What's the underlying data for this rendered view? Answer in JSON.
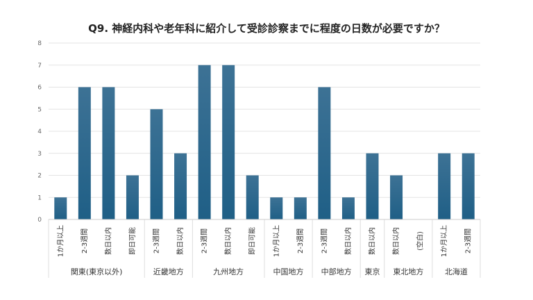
{
  "chart_data": {
    "type": "bar",
    "title": "Q9. 神経内科や老年科に紹介して受診診察までに程度の日数が必要ですか？",
    "xlabel": "",
    "ylabel": "",
    "ylim": [
      0,
      8
    ],
    "yticks": [
      "0",
      "1",
      "2",
      "3",
      "4",
      "5",
      "6",
      "7",
      "8"
    ],
    "grid": true,
    "bar_color": "#1f5f86",
    "groups": [
      {
        "name": "関東(東京以外)",
        "categories": [
          "1か月以上",
          "2-3週間",
          "数日以内",
          "即日可能"
        ],
        "values": [
          1,
          6,
          6,
          2
        ]
      },
      {
        "name": "近畿地方",
        "categories": [
          "2-3週間",
          "数日以内"
        ],
        "values": [
          5,
          3
        ]
      },
      {
        "name": "九州地方",
        "categories": [
          "2-3週間",
          "数日以内",
          "即日可能"
        ],
        "values": [
          7,
          7,
          2
        ]
      },
      {
        "name": "中国地方",
        "categories": [
          "1か月以上",
          "2-3週間"
        ],
        "values": [
          1,
          1
        ]
      },
      {
        "name": "中部地方",
        "categories": [
          "2-3週間",
          "数日以内"
        ],
        "values": [
          6,
          1
        ]
      },
      {
        "name": "東京",
        "categories": [
          "数日以内"
        ],
        "values": [
          3
        ]
      },
      {
        "name": "東北地方",
        "categories": [
          "数日以内",
          "(空白)"
        ],
        "values": [
          2,
          0
        ]
      },
      {
        "name": "北海道",
        "categories": [
          "1か月以上",
          "2-3週間"
        ],
        "values": [
          3,
          3
        ]
      }
    ]
  }
}
